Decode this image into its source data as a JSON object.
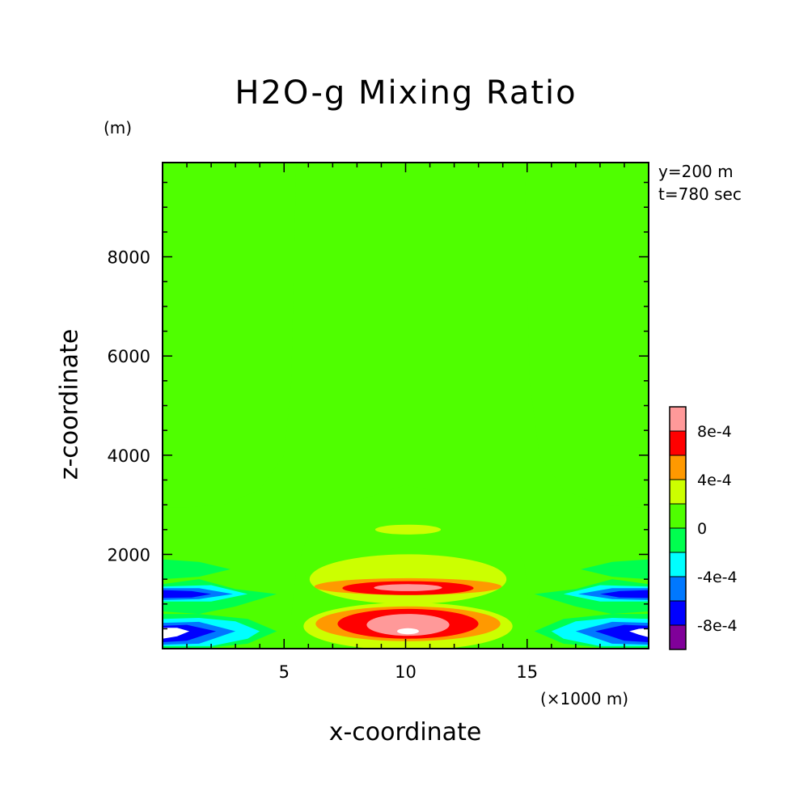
{
  "chart_data": {
    "type": "heatmap",
    "title": "H2O-g Mixing Ratio",
    "xlabel": "x-coordinate",
    "ylabel": "z-coordinate",
    "x_unit": "(×1000 m)",
    "y_unit": "(m)",
    "annotations": [
      "y=200 m",
      "t=780 sec"
    ],
    "xlim": [
      0,
      20
    ],
    "ylim": [
      100,
      9900
    ],
    "x_ticks": [
      5,
      10,
      15
    ],
    "x_tick_labels": [
      "5",
      "10",
      "15"
    ],
    "y_ticks": [
      2000,
      4000,
      6000,
      8000
    ],
    "y_tick_labels": [
      "2000",
      "4000",
      "6000",
      "8000"
    ],
    "colorbar": {
      "levels": [
        -0.001,
        -0.0008,
        -0.0006,
        -0.0004,
        -0.0002,
        0,
        0.0002,
        0.0004,
        0.0006,
        0.0008,
        0.001
      ],
      "colors": [
        "#800099",
        "#0000ff",
        "#0078ff",
        "#00ffff",
        "#00ff4f",
        "#4fff00",
        "#ccff00",
        "#ff9900",
        "#ff0000",
        "#ff9999"
      ],
      "tick_values": [
        -0.0008,
        -0.0004,
        0,
        0.0004,
        0.0008
      ],
      "tick_labels": [
        "-8e-4",
        "-4e-4",
        "0",
        "4e-4",
        "8e-4"
      ]
    },
    "regions": [
      {
        "level": 0.0001,
        "polygon": [
          [
            0,
            9900
          ],
          [
            5.5,
            9900
          ],
          [
            5.3,
            5500
          ],
          [
            5,
            4000
          ],
          [
            4,
            3300
          ],
          [
            2.5,
            3000
          ],
          [
            1,
            2950
          ],
          [
            0.5,
            2950
          ],
          [
            0,
            2950
          ]
        ]
      },
      {
        "level": 0.0001,
        "polygon": [
          [
            20,
            9900
          ],
          [
            14.9,
            9900
          ],
          [
            15.1,
            5500
          ],
          [
            15.5,
            4000
          ],
          [
            16.5,
            3300
          ],
          [
            18,
            3000
          ],
          [
            19.5,
            2950
          ],
          [
            20,
            2950
          ]
        ]
      },
      {
        "level": 0.0001,
        "polygon": [
          [
            5.9,
            100
          ],
          [
            5.3,
            800
          ],
          [
            5.5,
            1700
          ],
          [
            6,
            2400
          ],
          [
            7.5,
            3000
          ],
          [
            10,
            3400
          ],
          [
            12.5,
            3150
          ],
          [
            14,
            2600
          ],
          [
            14.9,
            1800
          ],
          [
            15.1,
            800
          ],
          [
            14.3,
            100
          ]
        ]
      },
      {
        "level": 0.0003,
        "ellipse": {
          "cx": 10.1,
          "cz": 2500,
          "rx": 1.35,
          "rz": 100
        }
      },
      {
        "level": 0.0003,
        "ellipse": {
          "cx": 10.1,
          "cz": 1500,
          "rx": 4.05,
          "rz": 500
        }
      },
      {
        "level": 0.0003,
        "ellipse": {
          "cx": 10.1,
          "cz": 550,
          "rx": 4.3,
          "rz": 480
        }
      },
      {
        "level": 0.0005,
        "ellipse": {
          "cx": 10.1,
          "cz": 1350,
          "rx": 3.85,
          "rz": 170
        }
      },
      {
        "level": 0.0005,
        "ellipse": {
          "cx": 10.1,
          "cz": 600,
          "rx": 3.8,
          "rz": 350
        }
      },
      {
        "level": 0.0007,
        "ellipse": {
          "cx": 10.1,
          "cz": 1320,
          "rx": 2.7,
          "rz": 140
        }
      },
      {
        "level": 0.0007,
        "ellipse": {
          "cx": 10.1,
          "cz": 600,
          "rx": 2.9,
          "rz": 300
        }
      },
      {
        "level": 0.0009,
        "ellipse": {
          "cx": 10.1,
          "cz": 1330,
          "rx": 1.4,
          "rz": 70
        }
      },
      {
        "level": 0.0009,
        "ellipse": {
          "cx": 10.1,
          "cz": 580,
          "rx": 1.7,
          "rz": 220
        }
      },
      {
        "level": 0.0011,
        "ellipse": {
          "cx": 10.1,
          "cz": 450,
          "rx": 0.45,
          "rz": 60
        }
      },
      {
        "level": -0.0001,
        "polygon": [
          [
            0,
            1400
          ],
          [
            1.5,
            1500
          ],
          [
            3,
            1300
          ],
          [
            4.7,
            1200
          ],
          [
            3,
            950
          ],
          [
            1.5,
            800
          ],
          [
            0,
            850
          ]
        ]
      },
      {
        "level": -0.0001,
        "polygon": [
          [
            0,
            1900
          ],
          [
            1.5,
            1850
          ],
          [
            2.8,
            1700
          ],
          [
            1.5,
            1550
          ],
          [
            0,
            1500
          ]
        ]
      },
      {
        "level": -0.0001,
        "polygon": [
          [
            0,
            100
          ],
          [
            1.5,
            100
          ],
          [
            3.5,
            200
          ],
          [
            4.7,
            450
          ],
          [
            3.5,
            700
          ],
          [
            1.5,
            800
          ],
          [
            0,
            800
          ]
        ]
      },
      {
        "level": -0.0003,
        "polygon": [
          [
            0,
            1350
          ],
          [
            2,
            1380
          ],
          [
            3.5,
            1200
          ],
          [
            2,
            1050
          ],
          [
            0,
            1050
          ]
        ]
      },
      {
        "level": -0.0003,
        "polygon": [
          [
            0,
            150
          ],
          [
            2,
            150
          ],
          [
            3.5,
            300
          ],
          [
            4,
            450
          ],
          [
            3,
            650
          ],
          [
            1.5,
            720
          ],
          [
            0,
            700
          ]
        ]
      },
      {
        "level": -0.0005,
        "polygon": [
          [
            0,
            1320
          ],
          [
            1.5,
            1320
          ],
          [
            2.9,
            1200
          ],
          [
            1.5,
            1100
          ],
          [
            0,
            1080
          ]
        ]
      },
      {
        "level": -0.0005,
        "polygon": [
          [
            0,
            180
          ],
          [
            1.5,
            200
          ],
          [
            3,
            450
          ],
          [
            1.5,
            640
          ],
          [
            0,
            620
          ]
        ]
      },
      {
        "level": -0.0007,
        "polygon": [
          [
            0,
            1280
          ],
          [
            1.2,
            1260
          ],
          [
            2,
            1200
          ],
          [
            1.2,
            1130
          ],
          [
            0,
            1120
          ]
        ]
      },
      {
        "level": -0.0007,
        "polygon": [
          [
            0,
            230
          ],
          [
            1,
            260
          ],
          [
            2.2,
            450
          ],
          [
            1,
            580
          ],
          [
            0,
            560
          ]
        ]
      },
      {
        "level": -0.0011,
        "polygon": [
          [
            0,
            300
          ],
          [
            0.6,
            350
          ],
          [
            1.1,
            450
          ],
          [
            0.6,
            520
          ],
          [
            0,
            520
          ]
        ]
      },
      {
        "level": -0.0001,
        "polygon": [
          [
            20,
            1400
          ],
          [
            18.5,
            1500
          ],
          [
            17,
            1300
          ],
          [
            15.3,
            1200
          ],
          [
            17,
            950
          ],
          [
            18.5,
            800
          ],
          [
            20,
            850
          ]
        ]
      },
      {
        "level": -0.0001,
        "polygon": [
          [
            20,
            1900
          ],
          [
            18.5,
            1850
          ],
          [
            17.2,
            1700
          ],
          [
            18.5,
            1550
          ],
          [
            20,
            1500
          ]
        ]
      },
      {
        "level": -0.0001,
        "polygon": [
          [
            20,
            100
          ],
          [
            18.5,
            100
          ],
          [
            16.5,
            200
          ],
          [
            15.3,
            450
          ],
          [
            16.5,
            700
          ],
          [
            18.5,
            800
          ],
          [
            20,
            800
          ]
        ]
      },
      {
        "level": -0.0003,
        "polygon": [
          [
            20,
            1350
          ],
          [
            18,
            1380
          ],
          [
            16.5,
            1200
          ],
          [
            18,
            1050
          ],
          [
            20,
            1050
          ]
        ]
      },
      {
        "level": -0.0003,
        "polygon": [
          [
            20,
            150
          ],
          [
            18,
            150
          ],
          [
            16.5,
            300
          ],
          [
            16,
            450
          ],
          [
            17,
            650
          ],
          [
            18.5,
            720
          ],
          [
            20,
            700
          ]
        ]
      },
      {
        "level": -0.0005,
        "polygon": [
          [
            20,
            1320
          ],
          [
            18.5,
            1320
          ],
          [
            17.1,
            1200
          ],
          [
            18.5,
            1100
          ],
          [
            20,
            1080
          ]
        ]
      },
      {
        "level": -0.0005,
        "polygon": [
          [
            20,
            180
          ],
          [
            18.5,
            200
          ],
          [
            17,
            450
          ],
          [
            18.5,
            640
          ],
          [
            20,
            620
          ]
        ]
      },
      {
        "level": -0.0007,
        "polygon": [
          [
            20,
            1280
          ],
          [
            18.8,
            1260
          ],
          [
            18,
            1200
          ],
          [
            18.8,
            1130
          ],
          [
            20,
            1120
          ]
        ]
      },
      {
        "level": -0.0007,
        "polygon": [
          [
            20,
            230
          ],
          [
            19,
            260
          ],
          [
            17.8,
            450
          ],
          [
            19,
            580
          ],
          [
            20,
            560
          ]
        ]
      },
      {
        "level": -0.0011,
        "polygon": [
          [
            20,
            330
          ],
          [
            19.6,
            380
          ],
          [
            19.2,
            450
          ],
          [
            19.6,
            500
          ],
          [
            20,
            510
          ]
        ]
      }
    ]
  }
}
